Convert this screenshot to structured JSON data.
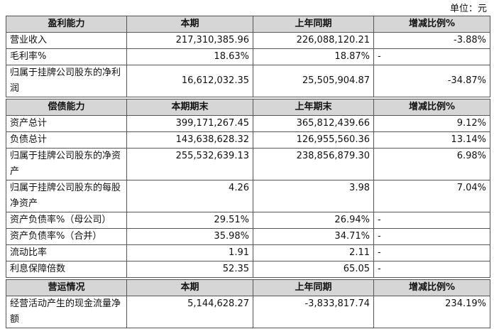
{
  "unit": "单位：元",
  "sections": [
    {
      "header": [
        "盈利能力",
        "本期",
        "上年同期",
        "增减比例%"
      ],
      "rows": [
        [
          "营业收入",
          "217,310,385.96",
          "226,088,120.21",
          "-3.88%"
        ],
        [
          "毛利率%",
          "18.63%",
          "18.87%",
          "-"
        ],
        [
          "归属于挂牌公司股东的净利润",
          "16,612,032.35",
          "25,505,904.87",
          "-34.87%"
        ]
      ]
    },
    {
      "header": [
        "偿债能力",
        "本期期末",
        "上年期末",
        "增减比例%"
      ],
      "rows": [
        [
          "资产总计",
          "399,171,267.45",
          "365,812,439.66",
          "9.12%"
        ],
        [
          "负债总计",
          "143,638,628.32",
          "126,955,560.36",
          "13.14%"
        ],
        [
          "归属于挂牌公司股东的净资产",
          "255,532,639.13",
          "238,856,879.30",
          "6.98%"
        ],
        [
          "归属于挂牌公司股东的每股净资产",
          "4.26",
          "3.98",
          "7.04%"
        ],
        [
          "资产负债率%（母公司）",
          "29.51%",
          "26.94%",
          "-"
        ],
        [
          "资产负债率%（合并）",
          "35.98%",
          "34.71%",
          "-"
        ],
        [
          "流动比率",
          "1.91",
          "2.11",
          "-"
        ],
        [
          "利息保障倍数",
          "52.35",
          "65.05",
          "-"
        ]
      ]
    },
    {
      "header": [
        "营运情况",
        "本期",
        "上年同期",
        "增减比例%"
      ],
      "rows": [
        [
          "经营活动产生的现金流量净额",
          "5,144,628.27",
          "-3,833,817.74",
          "234.19%"
        ]
      ]
    }
  ]
}
